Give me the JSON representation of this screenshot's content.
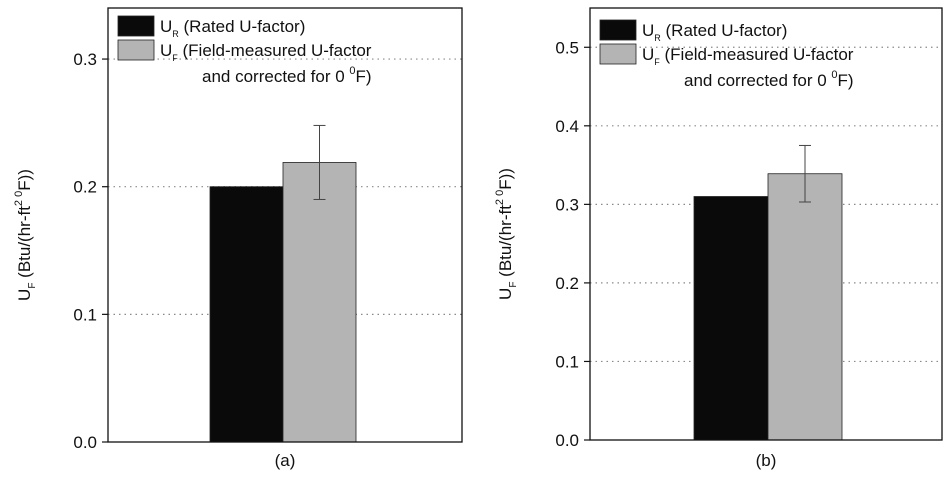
{
  "colors": {
    "rated": "#0a0a0a",
    "field": "#b4b4b4",
    "grid": "#8a8a8a",
    "axis": "#111111"
  },
  "chart_data": [
    {
      "type": "bar",
      "panel_label": "(a)",
      "ylabel_main": "U",
      "ylabel_sub": "F",
      "ylabel_rest": " (Btu/(hr-ft",
      "ylabel_sup": "2 0",
      "ylabel_end": "F))",
      "ylim": [
        0.0,
        0.34
      ],
      "yticks": [
        0.0,
        0.1,
        0.2,
        0.3
      ],
      "ytick_labels": [
        "0.0",
        "0.1",
        "0.2",
        "0.3"
      ],
      "grid": "dotted horizontal",
      "legend_position": "top-left",
      "series": [
        {
          "legend_main": "U",
          "legend_sub": "R",
          "legend_text": " (Rated U-factor)",
          "values": [
            0.2
          ]
        },
        {
          "legend_main": "U",
          "legend_sub": "F",
          "legend_text": " (Field-measured U-factor",
          "legend_text2a": "and corrected for 0 ",
          "legend_text2sup": "0",
          "legend_text2b": "F)",
          "values": [
            0.219
          ],
          "error": [
            0.029
          ]
        }
      ]
    },
    {
      "type": "bar",
      "panel_label": "(b)",
      "ylabel_main": "U",
      "ylabel_sub": "F",
      "ylabel_rest": " (Btu/(hr-ft",
      "ylabel_sup": "2 0",
      "ylabel_end": "F))",
      "ylim": [
        0.0,
        0.55
      ],
      "yticks": [
        0.0,
        0.1,
        0.2,
        0.3,
        0.4,
        0.5
      ],
      "ytick_labels": [
        "0.0",
        "0.1",
        "0.2",
        "0.3",
        "0.4",
        "0.5"
      ],
      "grid": "dotted horizontal",
      "legend_position": "top-left",
      "series": [
        {
          "legend_main": "U",
          "legend_sub": "R",
          "legend_text": " (Rated U-factor)",
          "values": [
            0.31
          ]
        },
        {
          "legend_main": "U",
          "legend_sub": "F",
          "legend_text": " (Field-measured U-factor",
          "legend_text2a": "and corrected for 0 ",
          "legend_text2sup": "0",
          "legend_text2b": "F)",
          "values": [
            0.339
          ],
          "error": [
            0.036
          ]
        }
      ]
    }
  ]
}
